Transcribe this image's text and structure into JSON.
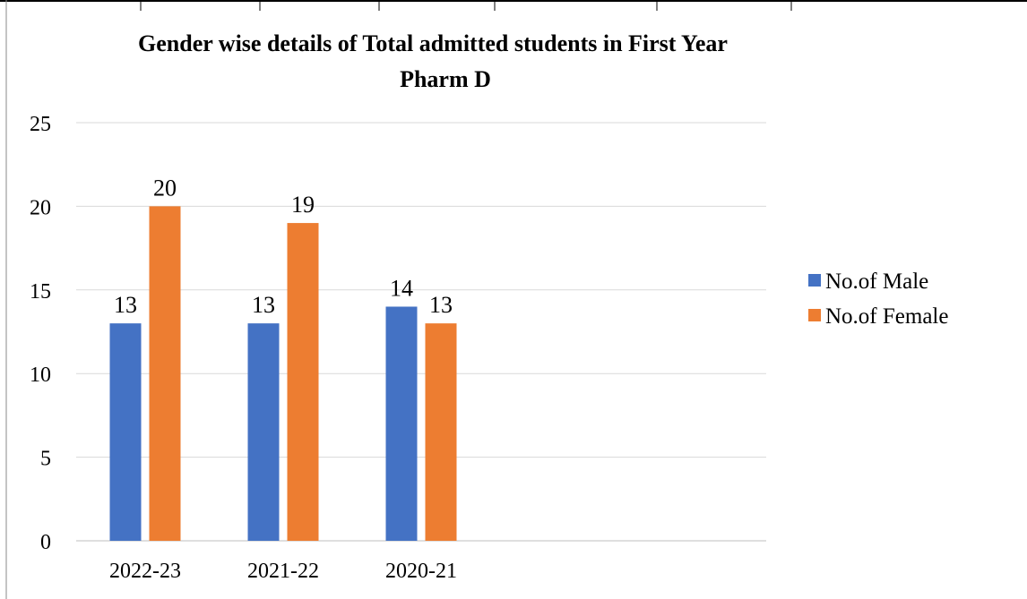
{
  "chart_data": {
    "type": "bar",
    "title_lines": [
      "Gender wise details of Total admitted students in First Year",
      "Pharm D"
    ],
    "categories": [
      "2022-23",
      "2021-22",
      "2020-21"
    ],
    "series": [
      {
        "name": "No.of Male",
        "values": [
          13,
          13,
          14
        ],
        "color": "#4472C4"
      },
      {
        "name": "No.of Female",
        "values": [
          20,
          19,
          13
        ],
        "color": "#ED7D31"
      }
    ],
    "ylim": [
      0,
      25
    ],
    "yticks": [
      0,
      5,
      10,
      15,
      20,
      25
    ],
    "grid": true,
    "legend_position": "right",
    "data_labels": true
  }
}
